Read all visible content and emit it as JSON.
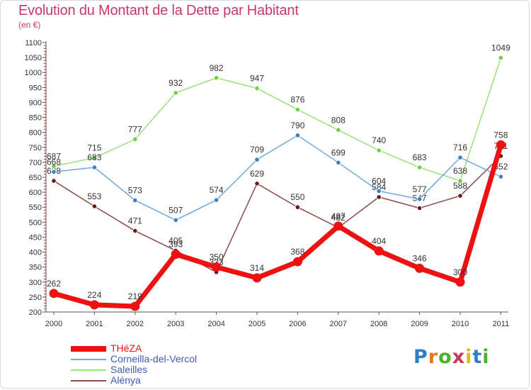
{
  "title": "Evolution du Montant de la Dette par Habitant",
  "subtitle": "(en €)",
  "brand": {
    "letters": [
      "P",
      "r",
      "o",
      "x",
      "i",
      "t",
      "i"
    ],
    "colors": [
      "#2f7fc4",
      "#e07a1f",
      "#4caf2e",
      "#c43a5a",
      "#e0b81f",
      "#2f7fc4",
      "#4caf2e"
    ]
  },
  "chart_data": {
    "type": "line",
    "title": "Evolution du Montant de la Dette par Habitant",
    "ylabel": "(en €)",
    "x": [
      "2000",
      "2001",
      "2002",
      "2003",
      "2004",
      "2005",
      "2006",
      "2007",
      "2008",
      "2009",
      "2010",
      "2011"
    ],
    "ylim": [
      200,
      1100
    ],
    "yticks": [
      200,
      250,
      300,
      350,
      400,
      450,
      500,
      550,
      600,
      650,
      700,
      750,
      800,
      850,
      900,
      950,
      1000,
      1050,
      1100
    ],
    "grid": false,
    "legend_position": "bottom-left",
    "series": [
      {
        "name": "THéZA",
        "color": "#ee1111",
        "marker": "#ee1111",
        "width": 7,
        "labelColor": "#333333",
        "values": [
          262,
          224,
          219,
          393,
          350,
          314,
          368,
          487,
          404,
          346,
          300,
          758
        ]
      },
      {
        "name": "Corneilla-del-Vercol",
        "color": "#6fa8dc",
        "marker": "#3d7fc1",
        "width": 1.5,
        "labelColor": "#333333",
        "values": [
          668,
          683,
          573,
          507,
          574,
          709,
          790,
          699,
          604,
          577,
          716,
          652
        ]
      },
      {
        "name": "Saleilles",
        "color": "#9be07a",
        "marker": "#6fcf3f",
        "width": 1.5,
        "labelColor": "#333333",
        "values": [
          687,
          715,
          777,
          932,
          982,
          947,
          876,
          808,
          740,
          683,
          638,
          1049
        ]
      },
      {
        "name": "Alénya",
        "color": "#8a4a4a",
        "marker": "#6a1a1a",
        "width": 1.5,
        "labelColor": "#333333",
        "values": [
          638,
          553,
          471,
          405,
          333,
          629,
          550,
          482,
          584,
          547,
          588,
          721
        ]
      }
    ]
  }
}
